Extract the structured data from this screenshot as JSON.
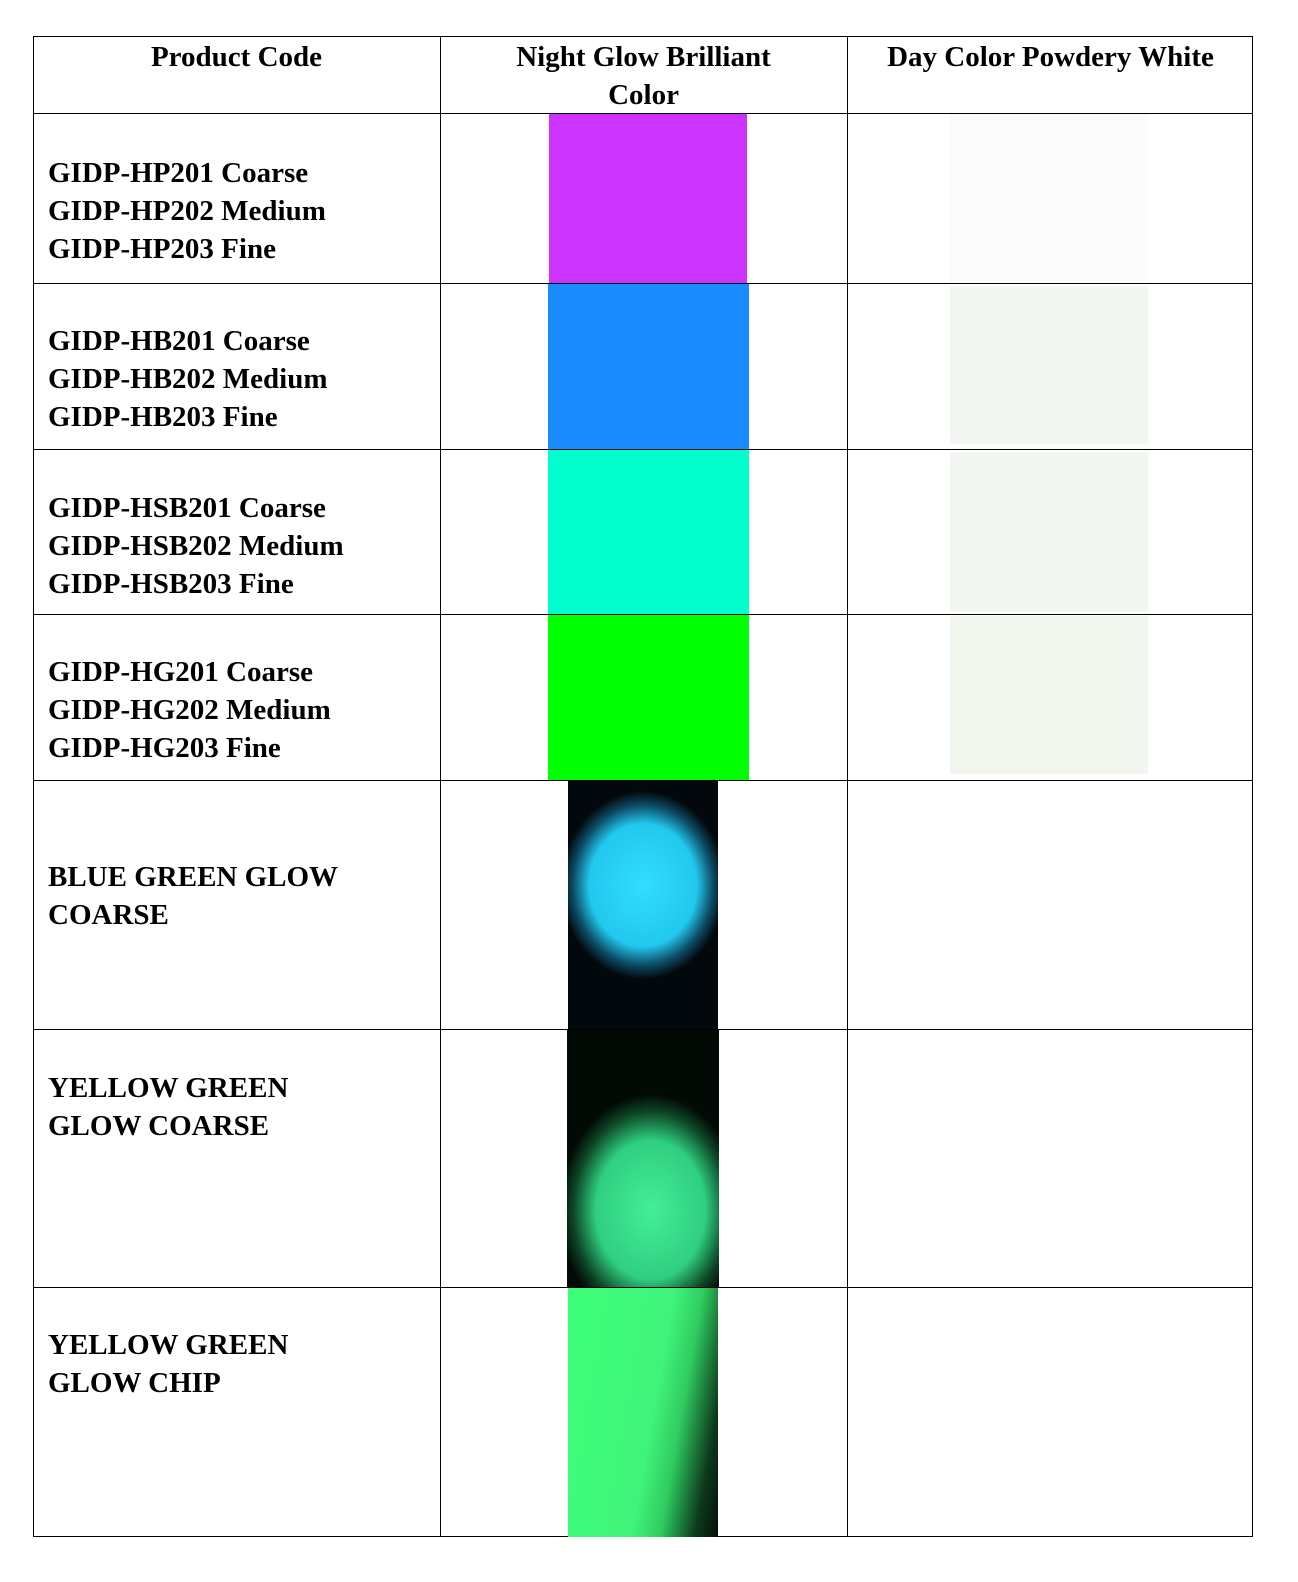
{
  "table": {
    "headers": [
      "Product Code",
      "Night Glow Brilliant Color",
      "Day Color Powdery White"
    ],
    "rows": [
      {
        "codes": [
          "GIDP-HP201 Coarse",
          "GIDP-HP202 Medium",
          "GIDP-HP203 Fine"
        ],
        "night_color": "#cc33ff",
        "day_color": "#fbfbfb"
      },
      {
        "codes": [
          "GIDP-HB201 Coarse",
          "GIDP-HB202 Medium",
          "GIDP-HB203 Fine"
        ],
        "night_color": "#1a8cff",
        "day_color": "#f3f7f1"
      },
      {
        "codes": [
          "GIDP-HSB201 Coarse",
          "GIDP-HSB202 Medium",
          "GIDP-HSB203 Fine"
        ],
        "night_color": "#00ffcc",
        "day_color": "#f3f7f1"
      },
      {
        "codes": [
          "GIDP-HG201 Coarse",
          "GIDP-HG202 Medium",
          "GIDP-HG203 Fine"
        ],
        "night_color": "#00ff00",
        "day_color": "#f1f6ef"
      },
      {
        "codes": [
          "BLUE GREEN GLOW",
          "COARSE"
        ],
        "night_color": "#33ddff"
      },
      {
        "codes": [
          "YELLOW GREEN",
          "GLOW COARSE"
        ],
        "night_color": "#33ee99"
      },
      {
        "codes": [
          "YELLOW GREEN",
          "GLOW CHIP"
        ],
        "night_color": "#33ff77"
      }
    ]
  }
}
